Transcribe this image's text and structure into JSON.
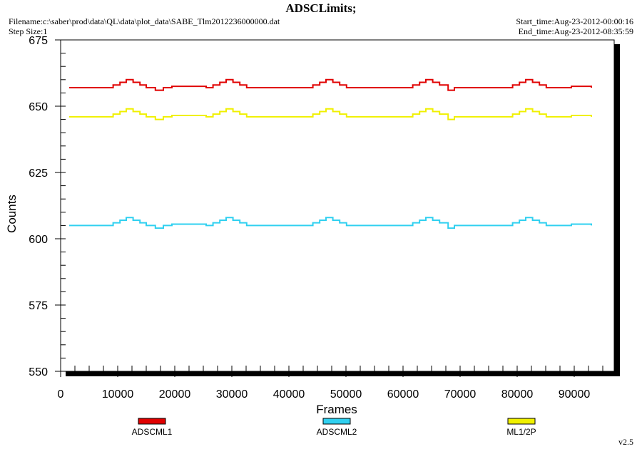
{
  "header": {
    "title": "ADSCLimits;",
    "filename": "Filename:c:\\saber\\prod\\data\\QL\\data\\plot_data\\SABE_Tlm2012236000000.dat",
    "step_size": "Step Size:1",
    "start_time": "Start_time:Aug-23-2012-00:00:16",
    "end_time": "End_time:Aug-23-2012-08:35:59"
  },
  "footer": {
    "version": "v2.5"
  },
  "chart_data": {
    "type": "line",
    "title": "ADSCLimits;",
    "xlabel": "Frames",
    "ylabel": "Counts",
    "xlim": [
      0,
      97000
    ],
    "ylim": [
      550,
      675
    ],
    "x_ticks": [
      0,
      10000,
      20000,
      30000,
      40000,
      50000,
      60000,
      70000,
      80000,
      90000
    ],
    "y_ticks": [
      550,
      575,
      600,
      625,
      650,
      675
    ],
    "grid": false,
    "legend": "bottom",
    "x": [
      1500,
      8000,
      9200,
      10400,
      11500,
      12700,
      13900,
      15000,
      16600,
      18000,
      19500,
      25500,
      26700,
      27900,
      29000,
      30200,
      31400,
      32600,
      43000,
      44200,
      45400,
      46500,
      47700,
      48900,
      50100,
      60500,
      61700,
      62900,
      64000,
      65200,
      66400,
      67900,
      69000,
      78000,
      79200,
      80400,
      81500,
      82700,
      83900,
      85100,
      89500,
      93000
    ],
    "series": [
      {
        "name": "ADSCML1",
        "color": "#e00000",
        "values": [
          657,
          657,
          658,
          659,
          660,
          659,
          658,
          657,
          656,
          657,
          657.5,
          657,
          658,
          659,
          660,
          659,
          658,
          657,
          657,
          658,
          659,
          660,
          659,
          658,
          657,
          657,
          658,
          659,
          660,
          659,
          658,
          656,
          657,
          657,
          658,
          659,
          660,
          659,
          658,
          657,
          657.5,
          657
        ]
      },
      {
        "name": "ADSCML2",
        "color": "#30d0f0",
        "values": [
          605,
          605,
          606,
          607,
          608,
          607,
          606,
          605,
          604,
          605,
          605.5,
          605,
          606,
          607,
          608,
          607,
          606,
          605,
          605,
          606,
          607,
          608,
          607,
          606,
          605,
          605,
          606,
          607,
          608,
          607,
          606,
          604,
          605,
          605,
          606,
          607,
          608,
          607,
          606,
          605,
          605.5,
          605
        ]
      },
      {
        "name": "ML1/2P",
        "color": "#f0f000",
        "values": [
          646,
          646,
          647,
          648,
          649,
          648,
          647,
          646,
          645,
          646,
          646.5,
          646,
          647,
          648,
          649,
          648,
          647,
          646,
          646,
          647,
          648,
          649,
          648,
          647,
          646,
          646,
          647,
          648,
          649,
          648,
          647,
          645,
          646,
          646,
          647,
          648,
          649,
          648,
          647,
          646,
          646.5,
          646
        ]
      }
    ]
  }
}
